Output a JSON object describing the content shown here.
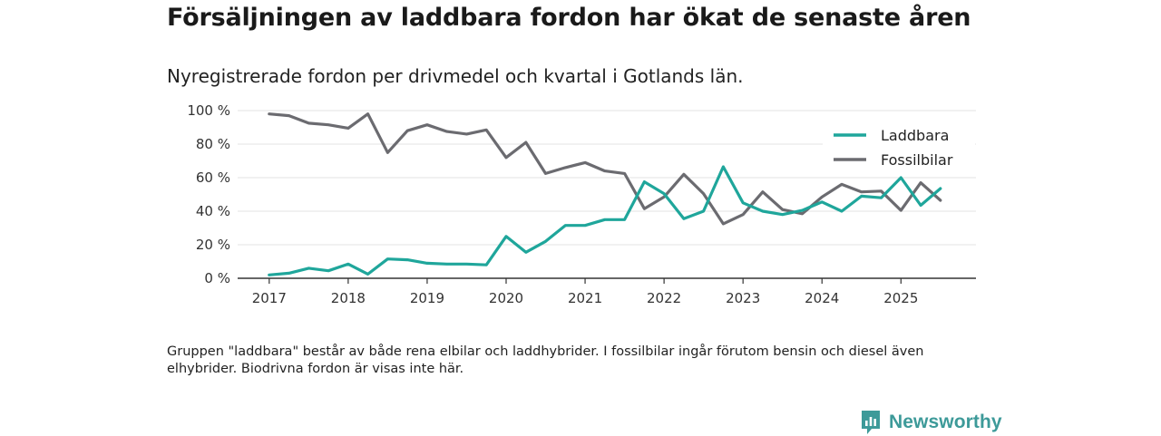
{
  "title": "Försäljningen av laddbara fordon har ökat de senaste åren",
  "subtitle": "Nyregistrerade fordon per drivmedel och kvartal i Gotlands län.",
  "footnote": "Gruppen \"laddbara\" består av både rena elbilar och laddhybrider. I fossilbilar ingår förutom bensin och diesel även elhybrider. Biodrivna fordon är visas inte här.",
  "brand": {
    "name": "Newsworthy",
    "color": "#3d9a99",
    "icon": "newsworthy-logo-icon"
  },
  "chart_data": {
    "type": "line",
    "title": "Försäljningen av laddbara fordon har ökat de senaste åren",
    "xlabel": "",
    "ylabel": "",
    "ylim": [
      0,
      100
    ],
    "yticks": [
      "0 %",
      "20 %",
      "40 %",
      "60 %",
      "80 %",
      "100 %"
    ],
    "ytick_values": [
      0,
      20,
      40,
      60,
      80,
      100
    ],
    "xticks": [
      "2017",
      "2018",
      "2019",
      "2020",
      "2021",
      "2022",
      "2023",
      "2024",
      "2025"
    ],
    "xtick_values": [
      2017,
      2018,
      2019,
      2020,
      2021,
      2022,
      2023,
      2024,
      2025
    ],
    "xlim": [
      2016.6,
      2025.95
    ],
    "legend_position": "top-right",
    "grid": true,
    "x": [
      2017.0,
      2017.25,
      2017.5,
      2017.75,
      2018.0,
      2018.25,
      2018.5,
      2018.75,
      2019.0,
      2019.25,
      2019.5,
      2019.75,
      2020.0,
      2020.25,
      2020.5,
      2020.75,
      2021.0,
      2021.25,
      2021.5,
      2021.75,
      2022.0,
      2022.25,
      2022.5,
      2022.75,
      2023.0,
      2023.25,
      2023.5,
      2023.75,
      2024.0,
      2024.25,
      2024.5,
      2024.75,
      2025.0,
      2025.25,
      2025.5
    ],
    "series": [
      {
        "name": "Laddbara",
        "color": "#1fa69b",
        "values": [
          2,
          3,
          6,
          4.5,
          8.5,
          2.5,
          11.5,
          11,
          9,
          8.5,
          8.5,
          8,
          25,
          15.5,
          22,
          31.5,
          31.5,
          35,
          35,
          57.5,
          50.5,
          35.5,
          40,
          66.5,
          45,
          40,
          38,
          40.5,
          45.5,
          40,
          49,
          48,
          60,
          43.5,
          53.5
        ]
      },
      {
        "name": "Fossilbilar",
        "color": "#6b6b70",
        "values": [
          98,
          97,
          92.5,
          91.5,
          89.5,
          98,
          75,
          88,
          91.5,
          87.5,
          86,
          88.5,
          72,
          81,
          62.5,
          66,
          69,
          64,
          62.5,
          41.5,
          48.5,
          62,
          50.5,
          32.5,
          38,
          51.5,
          41,
          38.5,
          48.5,
          56,
          51.5,
          52,
          40.5,
          57,
          46.5
        ]
      }
    ]
  }
}
